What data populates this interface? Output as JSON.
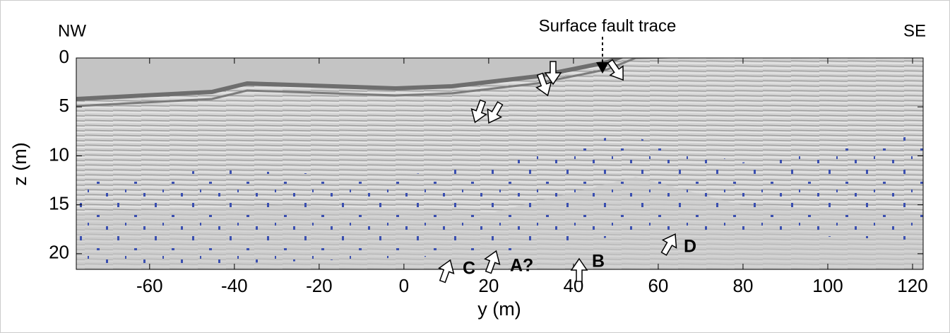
{
  "chart_data": {
    "type": "image-section",
    "xlabel": "y (m)",
    "ylabel": "z (m)",
    "xlim": [
      -77.3,
      122.5
    ],
    "ylim": [
      0,
      21.6
    ],
    "y_inverted": true,
    "xticks": [
      -60,
      -40,
      -20,
      0,
      20,
      40,
      60,
      80,
      100,
      120
    ],
    "yticks": [
      0,
      5,
      10,
      15,
      20
    ],
    "annotations": {
      "left": "NW",
      "right": "SE",
      "fault": "Surface fault trace",
      "c": "C",
      "a": "A?",
      "b": "B",
      "d": "D"
    }
  }
}
